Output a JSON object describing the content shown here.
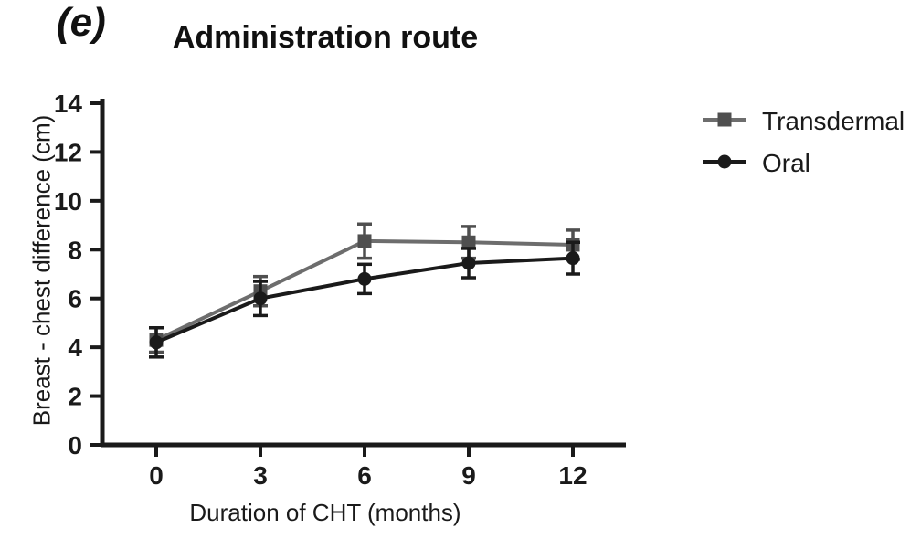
{
  "page": {
    "background": "#ffffff"
  },
  "panel_label": "(e)",
  "chart_data": {
    "type": "line",
    "title": "Administration route",
    "xlabel": "Duration of CHT (months)",
    "ylabel": "Breast - chest difference (cm)",
    "x": [
      0,
      3,
      6,
      9,
      12
    ],
    "x_ticks": [
      0,
      3,
      6,
      9,
      12
    ],
    "y_ticks": [
      0,
      2,
      4,
      6,
      8,
      10,
      12,
      14
    ],
    "xlim": [
      0,
      13.5
    ],
    "ylim": [
      0,
      14
    ],
    "grid": false,
    "legend_position": "right",
    "axis_color": "#1a1a1a",
    "error_bars": true,
    "series": [
      {
        "name": "Transdermal",
        "marker": "square",
        "line_color": "#6d6d6d",
        "marker_color": "#4f4f4f",
        "values": [
          4.3,
          6.3,
          8.35,
          8.3,
          8.2
        ],
        "errors": [
          0.5,
          0.6,
          0.7,
          0.65,
          0.6
        ]
      },
      {
        "name": "Oral",
        "marker": "circle",
        "line_color": "#1a1a1a",
        "marker_color": "#1a1a1a",
        "values": [
          4.2,
          6.0,
          6.8,
          7.45,
          7.65
        ],
        "errors": [
          0.6,
          0.7,
          0.6,
          0.6,
          0.65
        ]
      }
    ]
  }
}
